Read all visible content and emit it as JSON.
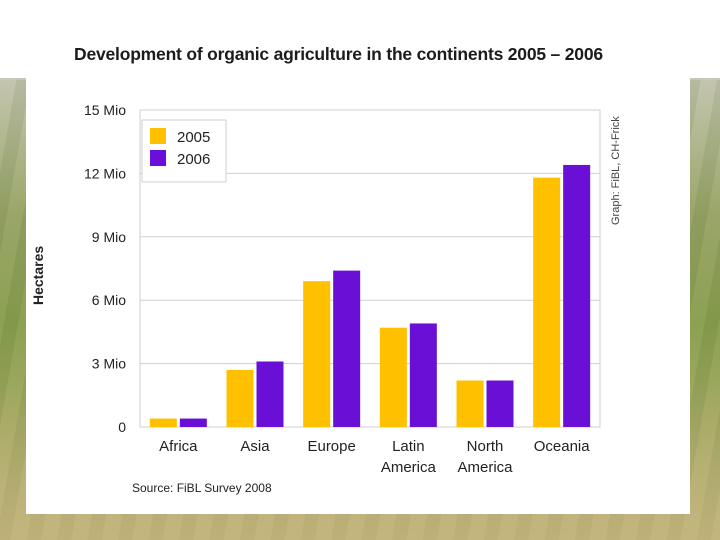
{
  "chart_data": {
    "type": "bar",
    "title": "Development of organic agriculture in the continents 2005 – 2006",
    "ylabel": "Hectares",
    "xlabel": "",
    "categories": [
      "Africa",
      "Asia",
      "Europe",
      "Latin\nAmerica",
      "North\nAmerica",
      "Oceania"
    ],
    "series": [
      {
        "name": "2005",
        "color": "#FFC000",
        "values": [
          0.4,
          2.7,
          6.9,
          4.7,
          2.2,
          11.8
        ]
      },
      {
        "name": "2006",
        "color": "#6A0FD6",
        "values": [
          0.4,
          3.1,
          7.4,
          4.9,
          2.2,
          12.4
        ]
      }
    ],
    "ylim": [
      0,
      15
    ],
    "yticks": [
      0,
      3,
      6,
      9,
      12,
      15
    ],
    "ytick_labels": [
      "0",
      "3 Mio",
      "6 Mio",
      "9 Mio",
      "12 Mio",
      "15 Mio"
    ],
    "grid": true,
    "legend": "top-left"
  },
  "source": "Source: FiBL Survey 2008",
  "credit": "Graph: FiBL, CH-Frick"
}
